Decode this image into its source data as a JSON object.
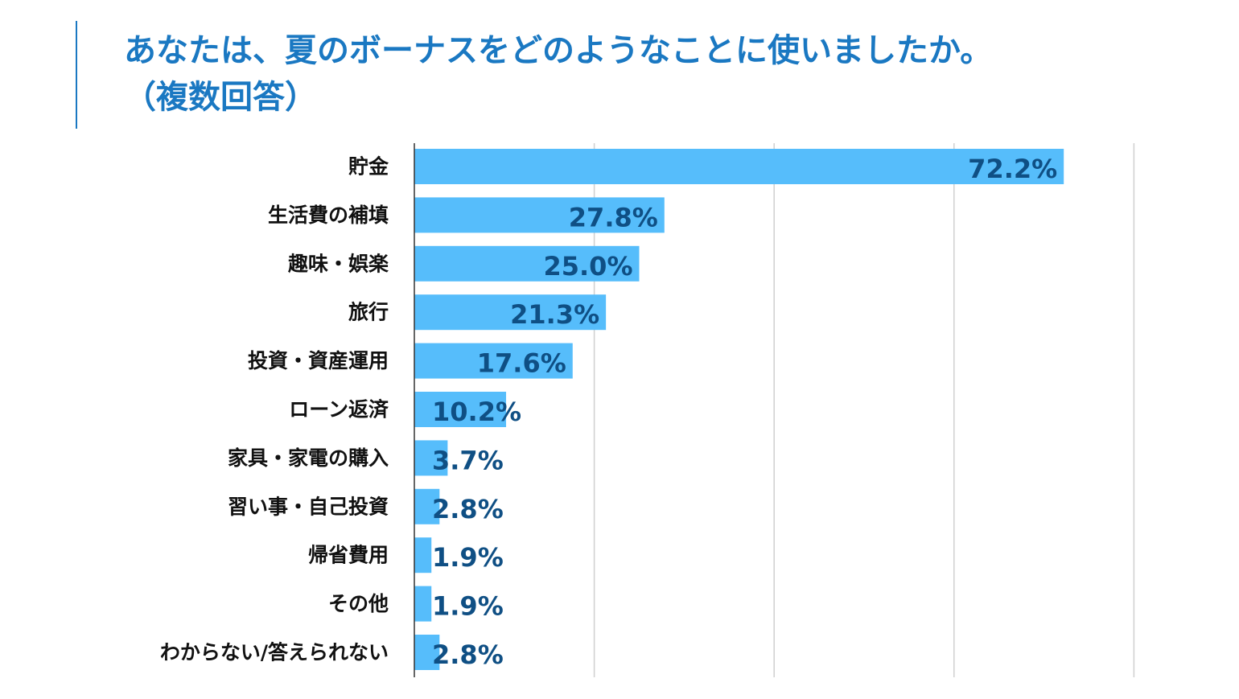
{
  "colors": {
    "title": "#1a78c2",
    "bar": "#56bdfb",
    "value_label": "#0f4f84",
    "category_label": "#111111",
    "grid": "#cfcfcf",
    "axis": "#333333"
  },
  "chart_data": {
    "type": "bar",
    "orientation": "horizontal",
    "title": "あなたは、夏のボーナスをどのようなことに使いましたか。\n（複数回答）",
    "categories": [
      "貯金",
      "生活費の補填",
      "趣味・娯楽",
      "旅行",
      "投資・資産運用",
      "ローン返済",
      "家具・家電の購入",
      "習い事・自己投資",
      "帰省費用",
      "その他",
      "わからない/答えられない"
    ],
    "values": [
      72.2,
      27.8,
      25.0,
      21.3,
      17.6,
      10.2,
      3.7,
      2.8,
      1.9,
      1.9,
      2.8
    ],
    "value_labels": [
      "72.2%",
      "27.8%",
      "25.0%",
      "21.3%",
      "17.6%",
      "10.2%",
      "3.7%",
      "2.8%",
      "1.9%",
      "1.9%",
      "2.8%"
    ],
    "unit": "%",
    "xlim": [
      0,
      80
    ],
    "grid": true,
    "gridlines": [
      20,
      40,
      60,
      80
    ],
    "legend": "none",
    "xlabel": "",
    "ylabel": ""
  }
}
